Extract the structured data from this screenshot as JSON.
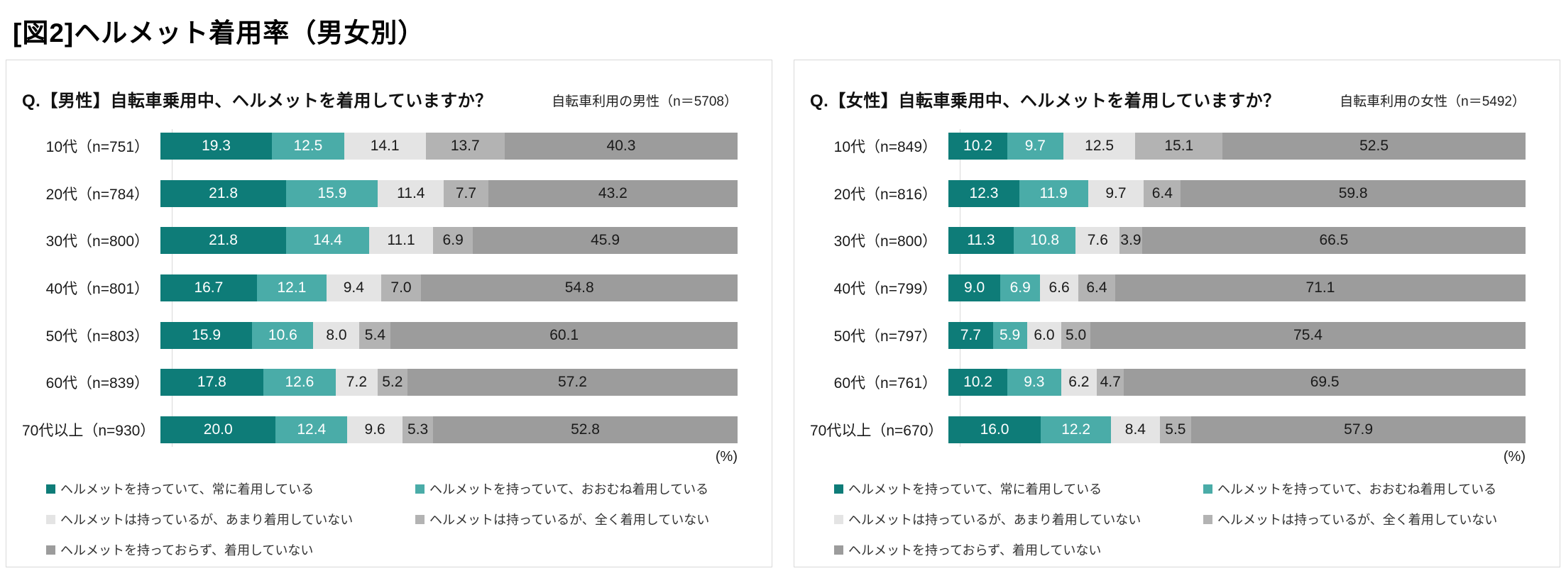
{
  "page_title": "[図2]ヘルメット着用率（男女別）",
  "unit_label": "(%)",
  "segment_colors": [
    "#0e7c78",
    "#4aaca8",
    "#e4e4e4",
    "#b3b3b3",
    "#9c9c9c"
  ],
  "segment_text_colors": [
    "#ffffff",
    "#ffffff",
    "#1a1a1a",
    "#1a1a1a",
    "#1a1a1a"
  ],
  "legend_labels": [
    "ヘルメットを持っていて、常に着用している",
    "ヘルメットを持っていて、おおむね着用している",
    "ヘルメットは持っているが、あまり着用していない",
    "ヘルメットは持っているが、全く着用していない",
    "ヘルメットを持っておらず、着用していない"
  ],
  "charts": [
    {
      "question": "Q.【男性】自転車乗用中、ヘルメットを着用していますか？",
      "note": "自転車利用の男性（n＝5708）",
      "rows": [
        {
          "label": "10代（n=751）",
          "values": [
            19.3,
            12.5,
            14.1,
            13.7,
            40.3
          ]
        },
        {
          "label": "20代（n=784）",
          "values": [
            21.8,
            15.9,
            11.4,
            7.7,
            43.2
          ]
        },
        {
          "label": "30代（n=800）",
          "values": [
            21.8,
            14.4,
            11.1,
            6.9,
            45.9
          ]
        },
        {
          "label": "40代（n=801）",
          "values": [
            16.7,
            12.1,
            9.4,
            7.0,
            54.8
          ]
        },
        {
          "label": "50代（n=803）",
          "values": [
            15.9,
            10.6,
            8.0,
            5.4,
            60.1
          ]
        },
        {
          "label": "60代（n=839）",
          "values": [
            17.8,
            12.6,
            7.2,
            5.2,
            57.2
          ]
        },
        {
          "label": "70代以上（n=930）",
          "values": [
            20.0,
            12.4,
            9.6,
            5.3,
            52.8
          ]
        }
      ]
    },
    {
      "question": "Q.【女性】自転車乗用中、ヘルメットを着用していますか？",
      "note": "自転車利用の女性（n＝5492）",
      "rows": [
        {
          "label": "10代（n=849）",
          "values": [
            10.2,
            9.7,
            12.5,
            15.1,
            52.5
          ]
        },
        {
          "label": "20代（n=816）",
          "values": [
            12.3,
            11.9,
            9.7,
            6.4,
            59.8
          ]
        },
        {
          "label": "30代（n=800）",
          "values": [
            11.3,
            10.8,
            7.6,
            3.9,
            66.5
          ]
        },
        {
          "label": "40代（n=799）",
          "values": [
            9.0,
            6.9,
            6.6,
            6.4,
            71.1
          ]
        },
        {
          "label": "50代（n=797）",
          "values": [
            7.7,
            5.9,
            6.0,
            5.0,
            75.4
          ]
        },
        {
          "label": "60代（n=761）",
          "values": [
            10.2,
            9.3,
            6.2,
            4.7,
            69.5
          ]
        },
        {
          "label": "70代以上（n=670）",
          "values": [
            16.0,
            12.2,
            8.4,
            5.5,
            57.9
          ]
        }
      ]
    }
  ],
  "chart_data": [
    {
      "type": "bar",
      "orientation": "horizontal-stacked",
      "title": "Q.【男性】自転車乗用中、ヘルメットを着用していますか？",
      "subtitle": "自転車利用の男性（n＝5708）",
      "categories": [
        "10代（n=751）",
        "20代（n=784）",
        "30代（n=800）",
        "40代（n=801）",
        "50代（n=803）",
        "60代（n=839）",
        "70代以上（n=930）"
      ],
      "series": [
        {
          "name": "ヘルメットを持っていて、常に着用している",
          "values": [
            19.3,
            21.8,
            21.8,
            16.7,
            15.9,
            17.8,
            20.0
          ]
        },
        {
          "name": "ヘルメットを持っていて、おおむね着用している",
          "values": [
            12.5,
            15.9,
            14.4,
            12.1,
            10.6,
            12.6,
            12.4
          ]
        },
        {
          "name": "ヘルメットは持っているが、あまり着用していない",
          "values": [
            14.1,
            11.4,
            11.1,
            9.4,
            8.0,
            7.2,
            9.6
          ]
        },
        {
          "name": "ヘルメットは持っているが、全く着用していない",
          "values": [
            13.7,
            7.7,
            6.9,
            7.0,
            5.4,
            5.2,
            5.3
          ]
        },
        {
          "name": "ヘルメットを持っておらず、着用していない",
          "values": [
            40.3,
            43.2,
            45.9,
            54.8,
            60.1,
            57.2,
            52.8
          ]
        }
      ],
      "unit": "%",
      "xlim": [
        0,
        100
      ],
      "grid": false,
      "legend_position": "bottom"
    },
    {
      "type": "bar",
      "orientation": "horizontal-stacked",
      "title": "Q.【女性】自転車乗用中、ヘルメットを着用していますか？",
      "subtitle": "自転車利用の女性（n＝5492）",
      "categories": [
        "10代（n=849）",
        "20代（n=816）",
        "30代（n=800）",
        "40代（n=799）",
        "50代（n=797）",
        "60代（n=761）",
        "70代以上（n=670）"
      ],
      "series": [
        {
          "name": "ヘルメットを持っていて、常に着用している",
          "values": [
            10.2,
            12.3,
            11.3,
            9.0,
            7.7,
            10.2,
            16.0
          ]
        },
        {
          "name": "ヘルメットを持っていて、おおむね着用している",
          "values": [
            9.7,
            11.9,
            10.8,
            6.9,
            5.9,
            9.3,
            12.2
          ]
        },
        {
          "name": "ヘルメットは持っているが、あまり着用していない",
          "values": [
            12.5,
            9.7,
            7.6,
            6.6,
            6.0,
            6.2,
            8.4
          ]
        },
        {
          "name": "ヘルメットは持っているが、全く着用していない",
          "values": [
            15.1,
            6.4,
            3.9,
            6.4,
            5.0,
            4.7,
            5.5
          ]
        },
        {
          "name": "ヘルメットを持っておらず、着用していない",
          "values": [
            52.5,
            59.8,
            66.5,
            71.1,
            75.4,
            69.5,
            57.9
          ]
        }
      ],
      "unit": "%",
      "xlim": [
        0,
        100
      ],
      "grid": false,
      "legend_position": "bottom"
    }
  ]
}
